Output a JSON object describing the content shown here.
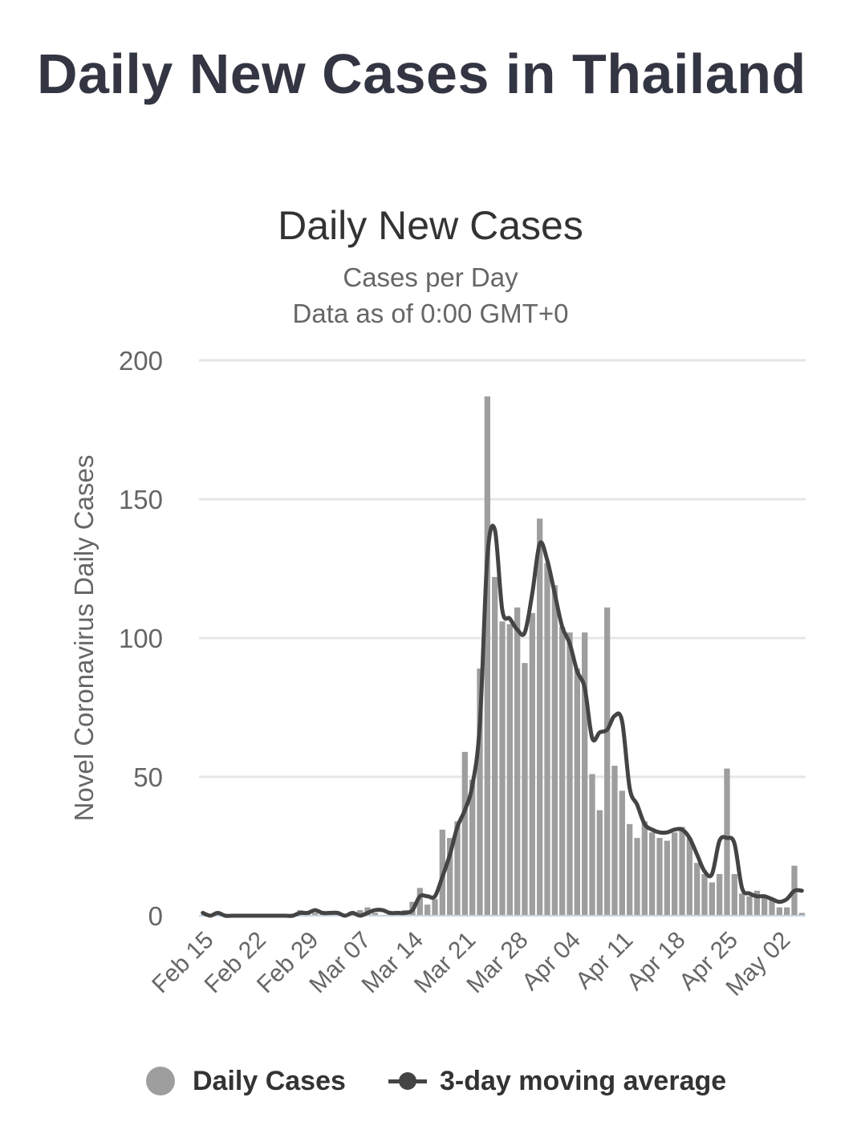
{
  "page": {
    "title": "Daily New Cases in Thailand"
  },
  "chart_data": {
    "type": "bar",
    "title": "Daily New Cases",
    "subtitle": "Cases per Day",
    "subtitle2": "Data as of 0:00 GMT+0",
    "ylabel": "Novel Coronavirus Daily Cases",
    "xlabel": "",
    "ylim": [
      0,
      200
    ],
    "yticks": [
      0,
      50,
      100,
      150,
      200
    ],
    "grid": true,
    "legend_position": "bottom",
    "x_tick_labels": [
      "Feb 15",
      "Feb 22",
      "Feb 29",
      "Mar 07",
      "Mar 14",
      "Mar 21",
      "Mar 28",
      "Apr 04",
      "Apr 11",
      "Apr 18",
      "Apr 25",
      "May 02"
    ],
    "categories": [
      "Feb 15",
      "Feb 16",
      "Feb 17",
      "Feb 18",
      "Feb 19",
      "Feb 20",
      "Feb 21",
      "Feb 22",
      "Feb 23",
      "Feb 24",
      "Feb 25",
      "Feb 26",
      "Feb 27",
      "Feb 28",
      "Feb 29",
      "Mar 01",
      "Mar 02",
      "Mar 03",
      "Mar 04",
      "Mar 05",
      "Mar 06",
      "Mar 07",
      "Mar 08",
      "Mar 09",
      "Mar 10",
      "Mar 11",
      "Mar 12",
      "Mar 13",
      "Mar 14",
      "Mar 15",
      "Mar 16",
      "Mar 17",
      "Mar 18",
      "Mar 19",
      "Mar 20",
      "Mar 21",
      "Mar 22",
      "Mar 23",
      "Mar 24",
      "Mar 25",
      "Mar 26",
      "Mar 27",
      "Mar 28",
      "Mar 29",
      "Mar 30",
      "Mar 31",
      "Apr 01",
      "Apr 02",
      "Apr 03",
      "Apr 04",
      "Apr 05",
      "Apr 06",
      "Apr 07",
      "Apr 08",
      "Apr 09",
      "Apr 10",
      "Apr 11",
      "Apr 12",
      "Apr 13",
      "Apr 14",
      "Apr 15",
      "Apr 16",
      "Apr 17",
      "Apr 18",
      "Apr 19",
      "Apr 20",
      "Apr 21",
      "Apr 22",
      "Apr 23",
      "Apr 24",
      "Apr 25",
      "Apr 26",
      "Apr 27",
      "Apr 28",
      "Apr 29",
      "Apr 30",
      "May 01",
      "May 02",
      "May 03",
      "May 04",
      "May 05"
    ],
    "series": [
      {
        "name": "Daily Cases",
        "kind": "bar",
        "color": "#9e9e9e",
        "values": [
          0,
          0,
          1,
          0,
          0,
          0,
          0,
          0,
          0,
          0,
          0,
          0,
          0,
          2,
          1,
          1,
          1,
          0,
          1,
          0,
          0,
          2,
          3,
          1,
          0,
          1,
          1,
          2,
          5,
          10,
          4,
          6,
          31,
          28,
          34,
          59,
          49,
          89,
          187,
          122,
          106,
          105,
          111,
          91,
          109,
          143,
          127,
          119,
          104,
          102,
          89,
          102,
          51,
          38,
          111,
          54,
          45,
          33,
          28,
          34,
          30,
          28,
          27,
          30,
          32,
          28,
          19,
          15,
          12,
          15,
          53,
          15,
          8,
          7,
          9,
          7,
          6,
          3,
          3,
          18,
          1
        ],
        "labelled_values": [
          187,
          143,
          122,
          119,
          111,
          111,
          106,
          105,
          104,
          102,
          102,
          89,
          89,
          59,
          54,
          53,
          51,
          49,
          45,
          38,
          34,
          33,
          31,
          28,
          18
        ]
      },
      {
        "name": "3-day moving average",
        "kind": "line",
        "color": "#444444",
        "values": [
          1,
          0,
          1,
          0,
          0,
          0,
          0,
          0,
          0,
          0,
          0,
          0,
          0,
          1,
          1,
          2,
          1,
          1,
          1,
          0,
          1,
          0,
          1,
          2,
          2,
          1,
          1,
          1,
          2,
          7,
          7,
          7,
          14,
          22,
          32,
          38,
          47,
          69,
          129,
          139,
          110,
          107,
          103,
          102,
          116,
          134,
          128,
          116,
          104,
          98,
          88,
          82,
          64,
          66,
          67,
          72,
          70,
          46,
          40,
          33,
          31,
          30,
          30,
          31,
          31,
          28,
          22,
          16,
          15,
          27,
          28,
          26,
          10,
          8,
          7,
          7,
          6,
          5,
          6,
          9,
          9
        ]
      }
    ]
  }
}
